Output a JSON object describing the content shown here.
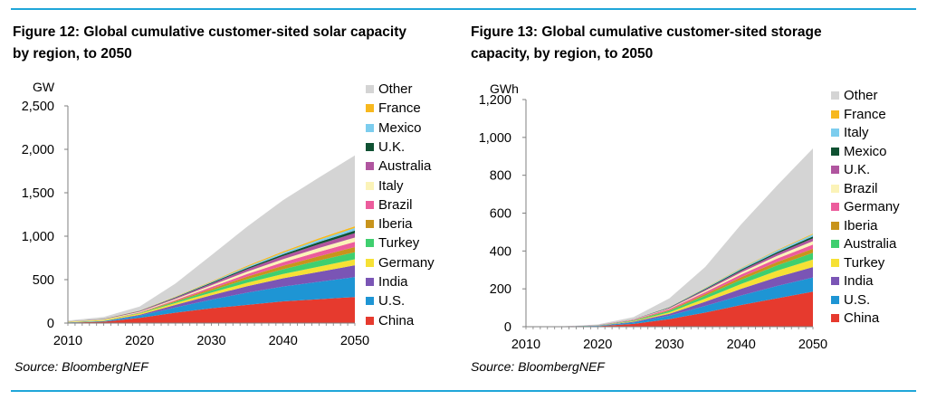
{
  "colors": {
    "rule": "#1fa6d9",
    "axis": "#7f7f7f"
  },
  "charts": [
    {
      "title_line1": "Figure 12: Global cumulative customer-sited solar capacity",
      "title_line2": "by region, to 2050",
      "source": "Source: BloombergNEF"
    },
    {
      "title_line1": "Figure 13: Global cumulative customer-sited storage",
      "title_line2": "capacity, by region, to 2050",
      "source": "Source: BloombergNEF"
    }
  ],
  "chart_data": [
    {
      "type": "area",
      "stacked": true,
      "title": "Figure 12: Global cumulative customer-sited solar capacity by region, to 2050",
      "ylabel": "GW",
      "xlim": [
        2010,
        2050
      ],
      "ylim": [
        0,
        2500
      ],
      "x_ticks": [
        2010,
        2020,
        2030,
        2040,
        2050
      ],
      "y_ticks": [
        0,
        500,
        1000,
        1500,
        2000,
        2500
      ],
      "y_tick_labels": [
        "0",
        "500",
        "1,000",
        "1,500",
        "2,000",
        "2,500"
      ],
      "legend_position": "right",
      "x": [
        2010,
        2015,
        2020,
        2025,
        2030,
        2035,
        2040,
        2045,
        2050
      ],
      "series": [
        {
          "name": "China",
          "color": "#e63a2e",
          "values": [
            5,
            15,
            60,
            120,
            170,
            210,
            250,
            275,
            300
          ]
        },
        {
          "name": "U.S.",
          "color": "#1e95d4",
          "values": [
            3,
            8,
            25,
            60,
            100,
            140,
            170,
            200,
            230
          ]
        },
        {
          "name": "India",
          "color": "#7a55b5",
          "values": [
            0,
            2,
            10,
            30,
            50,
            75,
            95,
            115,
            135
          ]
        },
        {
          "name": "Germany",
          "color": "#f6e135",
          "values": [
            5,
            10,
            15,
            20,
            30,
            40,
            50,
            60,
            70
          ]
        },
        {
          "name": "Turkey",
          "color": "#3fcf6f",
          "values": [
            0,
            1,
            5,
            15,
            25,
            40,
            55,
            70,
            80
          ]
        },
        {
          "name": "Iberia",
          "color": "#c8941c",
          "values": [
            0,
            1,
            4,
            10,
            20,
            30,
            40,
            50,
            60
          ]
        },
        {
          "name": "Brazil",
          "color": "#ec5c9c",
          "values": [
            0,
            0,
            3,
            10,
            20,
            30,
            40,
            50,
            60
          ]
        },
        {
          "name": "Italy",
          "color": "#fbf3b8",
          "values": [
            3,
            5,
            8,
            12,
            20,
            28,
            36,
            44,
            50
          ]
        },
        {
          "name": "Australia",
          "color": "#b0559f",
          "values": [
            1,
            4,
            8,
            14,
            20,
            28,
            36,
            44,
            50
          ]
        },
        {
          "name": "U.K.",
          "color": "#0f5132",
          "values": [
            1,
            2,
            3,
            6,
            10,
            15,
            20,
            25,
            30
          ]
        },
        {
          "name": "Mexico",
          "color": "#7ccdee",
          "values": [
            0,
            0,
            1,
            4,
            8,
            13,
            18,
            25,
            30
          ]
        },
        {
          "name": "France",
          "color": "#f7b81e",
          "values": [
            1,
            2,
            3,
            5,
            8,
            12,
            15,
            18,
            20
          ]
        },
        {
          "name": "Other",
          "color": "#d4d4d4",
          "values": [
            10,
            20,
            45,
            150,
            300,
            450,
            590,
            700,
            815
          ]
        }
      ]
    },
    {
      "type": "area",
      "stacked": true,
      "title": "Figure 13: Global cumulative customer-sited storage capacity, by region, to 2050",
      "ylabel": "GWh",
      "xlim": [
        2010,
        2050
      ],
      "ylim": [
        0,
        1200
      ],
      "x_ticks": [
        2010,
        2020,
        2030,
        2040,
        2050
      ],
      "y_ticks": [
        0,
        200,
        400,
        600,
        800,
        1000,
        1200
      ],
      "y_tick_labels": [
        "0",
        "200",
        "400",
        "600",
        "800",
        "1,000",
        "1,200"
      ],
      "legend_position": "right",
      "x": [
        2010,
        2015,
        2020,
        2025,
        2030,
        2035,
        2040,
        2045,
        2050
      ],
      "series": [
        {
          "name": "China",
          "color": "#e63a2e",
          "values": [
            0,
            0.5,
            3,
            15,
            40,
            75,
            115,
            150,
            185
          ]
        },
        {
          "name": "U.S.",
          "color": "#1e95d4",
          "values": [
            0,
            0.3,
            2,
            8,
            18,
            35,
            50,
            65,
            75
          ]
        },
        {
          "name": "India",
          "color": "#7a55b5",
          "values": [
            0,
            0,
            0.5,
            3,
            10,
            22,
            35,
            47,
            55
          ]
        },
        {
          "name": "Turkey",
          "color": "#f6e135",
          "values": [
            0,
            0,
            0.5,
            3,
            8,
            17,
            26,
            34,
            40
          ]
        },
        {
          "name": "Australia",
          "color": "#3fcf6f",
          "values": [
            0,
            0,
            1,
            4,
            8,
            15,
            22,
            28,
            35
          ]
        },
        {
          "name": "Iberia",
          "color": "#c8941c",
          "values": [
            0,
            0,
            0.2,
            1,
            4,
            9,
            14,
            18,
            22
          ]
        },
        {
          "name": "Germany",
          "color": "#ec5c9c",
          "values": [
            0,
            0.2,
            1,
            3,
            6,
            10,
            14,
            18,
            22
          ]
        },
        {
          "name": "Brazil",
          "color": "#fbf3b8",
          "values": [
            0,
            0,
            0.2,
            1,
            3,
            7,
            11,
            14,
            18
          ]
        },
        {
          "name": "U.K.",
          "color": "#b0559f",
          "values": [
            0,
            0,
            0.3,
            1,
            3,
            6,
            9,
            12,
            15
          ]
        },
        {
          "name": "Mexico",
          "color": "#0f5132",
          "values": [
            0,
            0,
            0.1,
            0.5,
            2,
            4,
            6,
            8,
            10
          ]
        },
        {
          "name": "Italy",
          "color": "#7ccdee",
          "values": [
            0,
            0,
            0.2,
            1,
            2,
            4,
            6,
            8,
            10
          ]
        },
        {
          "name": "France",
          "color": "#f7b81e",
          "values": [
            0,
            0,
            0.1,
            0.5,
            1,
            2,
            3,
            4,
            5
          ]
        },
        {
          "name": "Other",
          "color": "#d4d4d4",
          "values": [
            0,
            1,
            3,
            10,
            45,
            110,
            230,
            340,
            450
          ]
        }
      ]
    }
  ]
}
